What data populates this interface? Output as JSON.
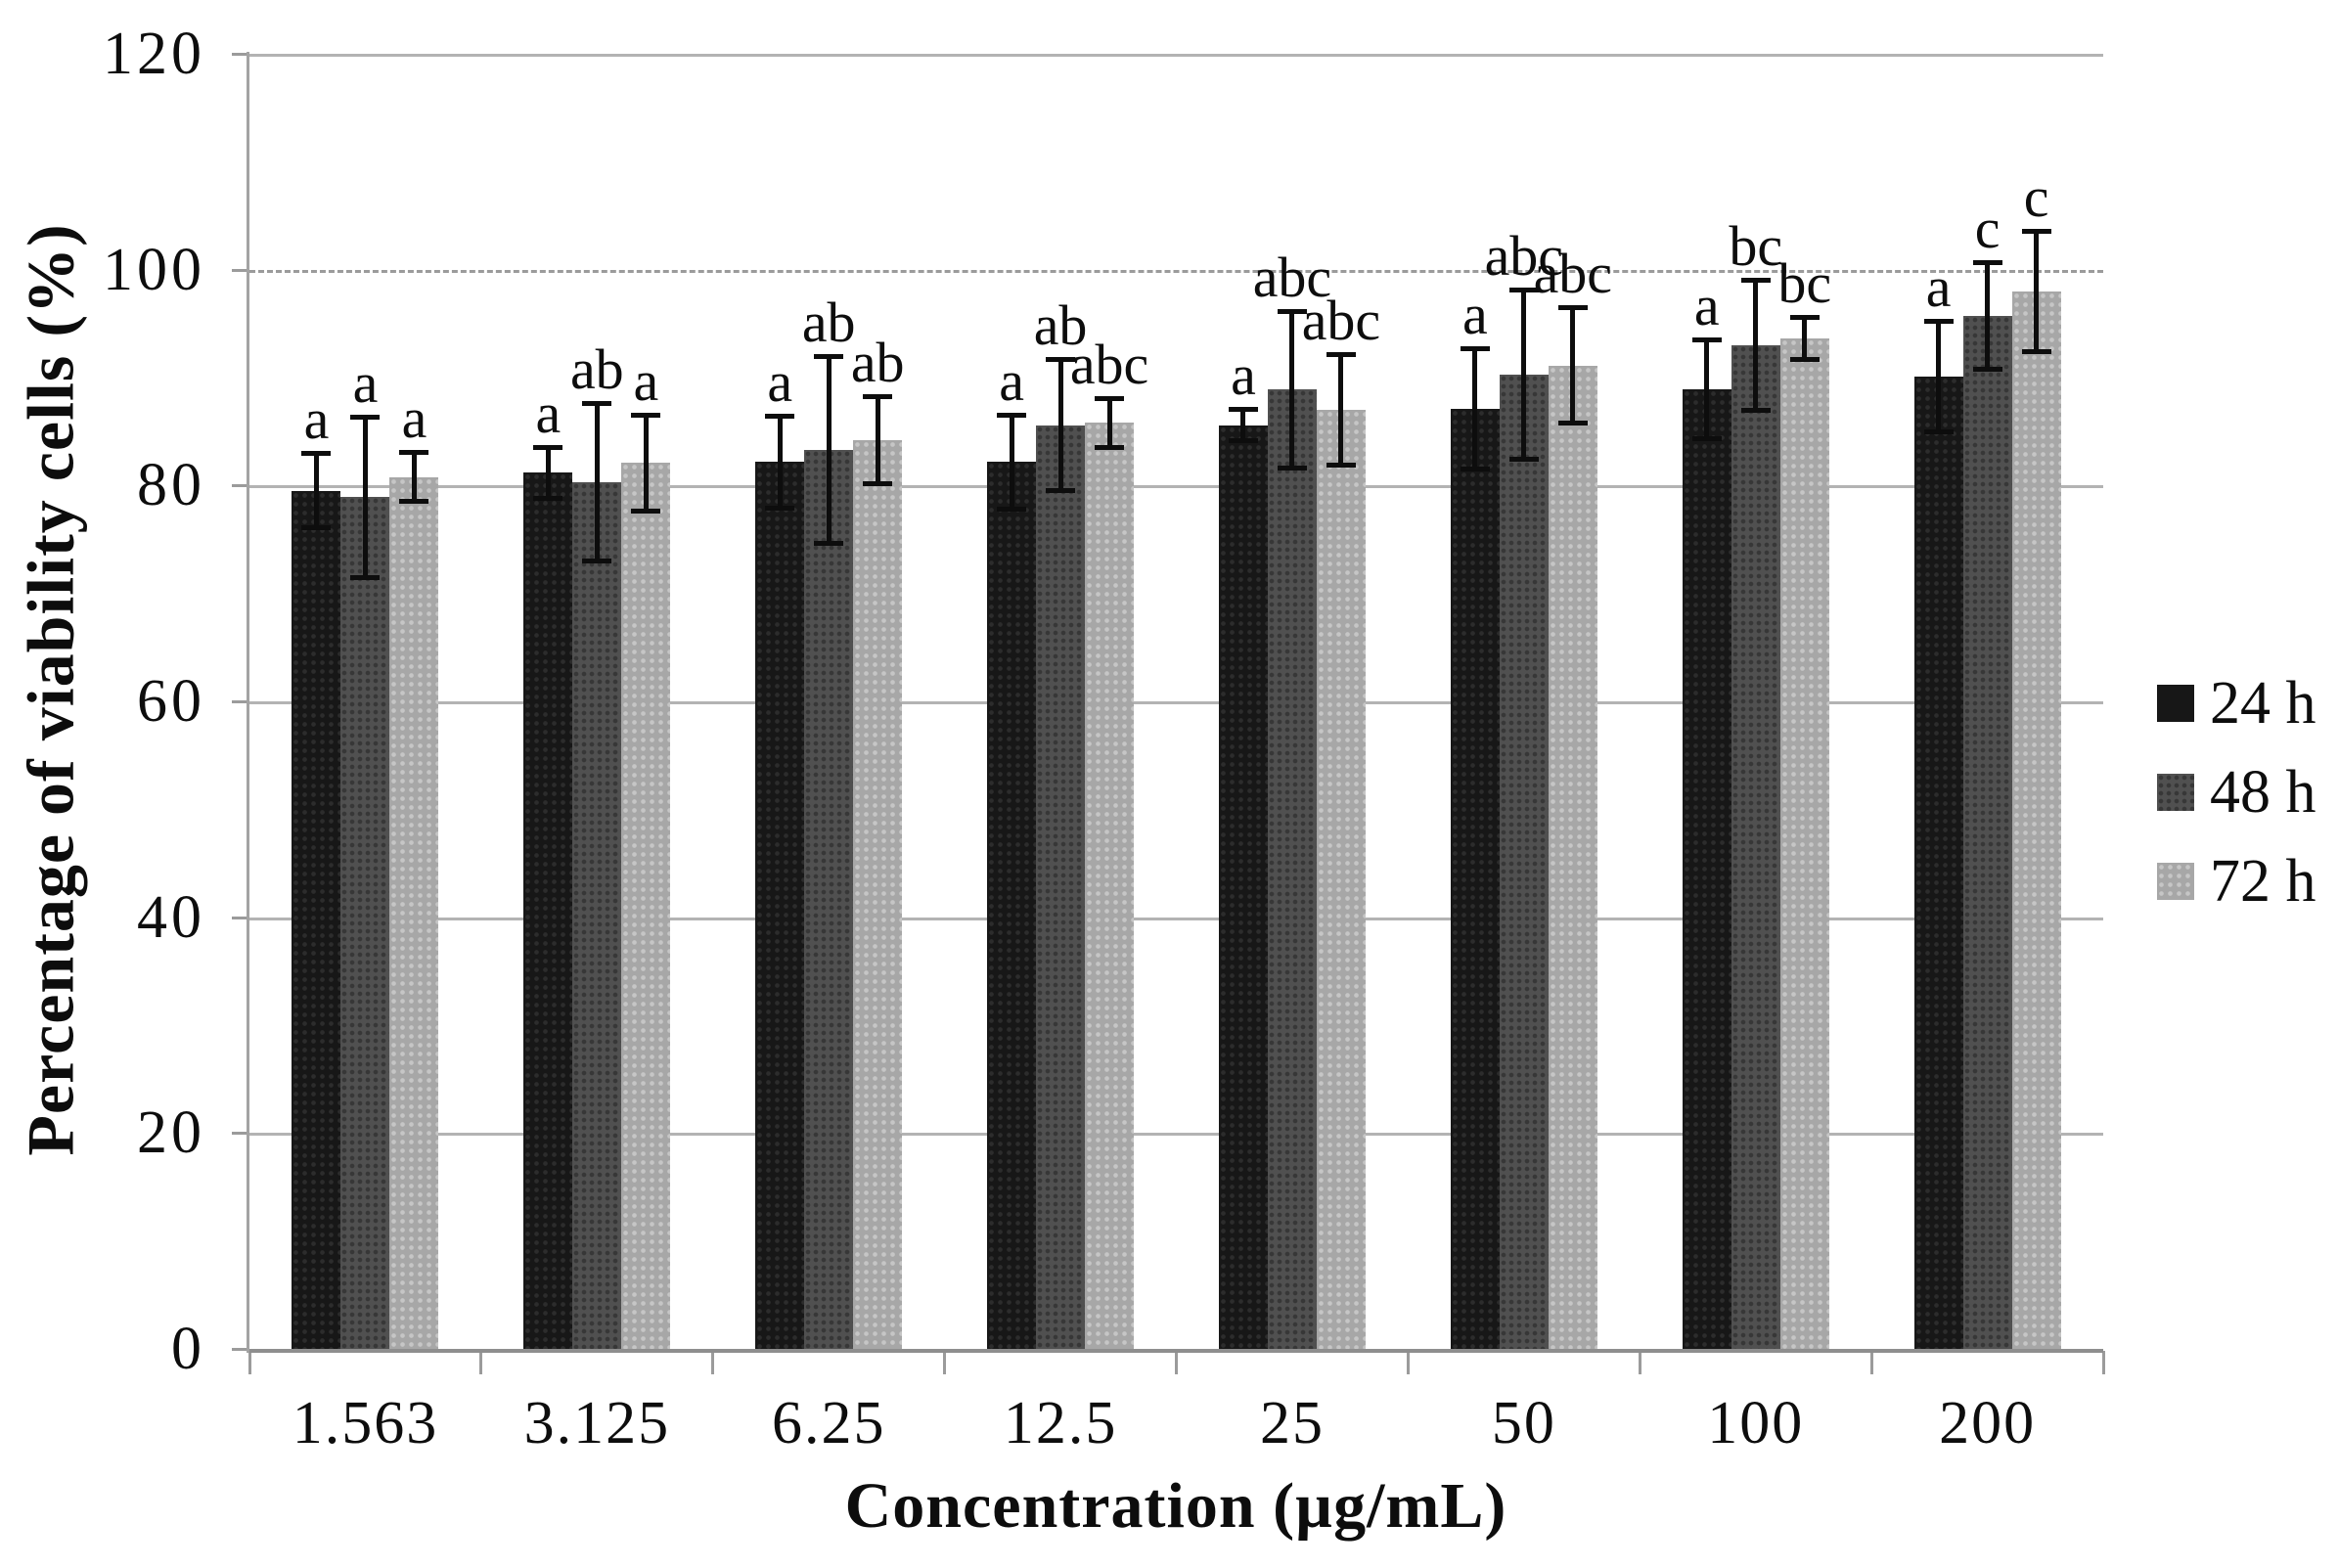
{
  "chart_data": {
    "type": "bar",
    "title": "",
    "xlabel": "Concentration (µg/mL)",
    "ylabel": "Percentage of viability cells (%)",
    "ylim": [
      0,
      120
    ],
    "yticks": [
      0,
      20,
      40,
      60,
      80,
      100,
      120
    ],
    "grid": "horizontal",
    "gridline_dashed_at": 100,
    "legend_position": "right",
    "categories": [
      "1.563",
      "3.125",
      "6.25",
      "12.5",
      "25",
      "50",
      "100",
      "200"
    ],
    "series": [
      {
        "name": "24 h",
        "color": "#171717",
        "values": [
          79.5,
          81.2,
          82.2,
          82.2,
          85.6,
          87.1,
          88.9,
          90.1
        ],
        "errors": [
          3.5,
          2.4,
          4.3,
          4.4,
          1.5,
          5.6,
          4.6,
          5.2
        ],
        "letters": [
          "a",
          "a",
          "a",
          "a",
          "a",
          "a",
          "a",
          "a"
        ]
      },
      {
        "name": "48 h",
        "color": "#505050",
        "values": [
          78.9,
          80.3,
          83.3,
          85.6,
          88.9,
          90.3,
          93.0,
          95.7
        ],
        "errors": [
          7.5,
          7.3,
          8.7,
          6.1,
          7.3,
          7.9,
          6.1,
          5.0
        ],
        "letters": [
          "a",
          "ab",
          "ab",
          "ab",
          "abc",
          "abc",
          "bc",
          "c"
        ]
      },
      {
        "name": "72 h",
        "color": "#a7a7a7",
        "values": [
          80.8,
          82.1,
          84.2,
          85.8,
          87.0,
          91.1,
          93.6,
          98.0
        ],
        "errors": [
          2.3,
          4.5,
          4.1,
          2.3,
          5.2,
          5.4,
          2.0,
          5.6
        ],
        "letters": [
          "a",
          "a",
          "ab",
          "abc",
          "abc",
          "abc",
          "bc",
          "c"
        ]
      }
    ]
  }
}
